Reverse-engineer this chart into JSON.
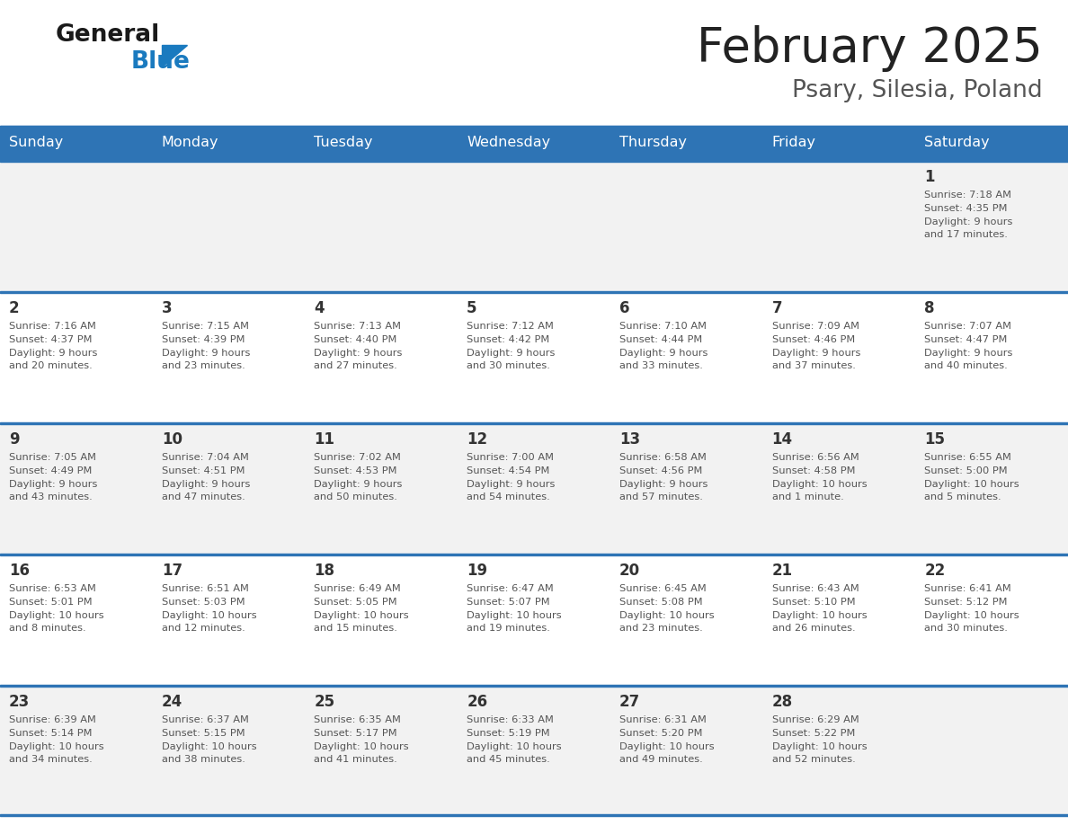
{
  "title": "February 2025",
  "subtitle": "Psary, Silesia, Poland",
  "header_bg": "#2E74B5",
  "header_text_color": "#FFFFFF",
  "cell_bg_odd": "#F2F2F2",
  "cell_bg_even": "#FFFFFF",
  "day_names": [
    "Sunday",
    "Monday",
    "Tuesday",
    "Wednesday",
    "Thursday",
    "Friday",
    "Saturday"
  ],
  "title_color": "#222222",
  "subtitle_color": "#555555",
  "divider_color": "#2E74B5",
  "day_number_color": "#333333",
  "cell_text_color": "#555555",
  "calendar": [
    [
      {
        "day": null,
        "info": null
      },
      {
        "day": null,
        "info": null
      },
      {
        "day": null,
        "info": null
      },
      {
        "day": null,
        "info": null
      },
      {
        "day": null,
        "info": null
      },
      {
        "day": null,
        "info": null
      },
      {
        "day": 1,
        "info": "Sunrise: 7:18 AM\nSunset: 4:35 PM\nDaylight: 9 hours\nand 17 minutes."
      }
    ],
    [
      {
        "day": 2,
        "info": "Sunrise: 7:16 AM\nSunset: 4:37 PM\nDaylight: 9 hours\nand 20 minutes."
      },
      {
        "day": 3,
        "info": "Sunrise: 7:15 AM\nSunset: 4:39 PM\nDaylight: 9 hours\nand 23 minutes."
      },
      {
        "day": 4,
        "info": "Sunrise: 7:13 AM\nSunset: 4:40 PM\nDaylight: 9 hours\nand 27 minutes."
      },
      {
        "day": 5,
        "info": "Sunrise: 7:12 AM\nSunset: 4:42 PM\nDaylight: 9 hours\nand 30 minutes."
      },
      {
        "day": 6,
        "info": "Sunrise: 7:10 AM\nSunset: 4:44 PM\nDaylight: 9 hours\nand 33 minutes."
      },
      {
        "day": 7,
        "info": "Sunrise: 7:09 AM\nSunset: 4:46 PM\nDaylight: 9 hours\nand 37 minutes."
      },
      {
        "day": 8,
        "info": "Sunrise: 7:07 AM\nSunset: 4:47 PM\nDaylight: 9 hours\nand 40 minutes."
      }
    ],
    [
      {
        "day": 9,
        "info": "Sunrise: 7:05 AM\nSunset: 4:49 PM\nDaylight: 9 hours\nand 43 minutes."
      },
      {
        "day": 10,
        "info": "Sunrise: 7:04 AM\nSunset: 4:51 PM\nDaylight: 9 hours\nand 47 minutes."
      },
      {
        "day": 11,
        "info": "Sunrise: 7:02 AM\nSunset: 4:53 PM\nDaylight: 9 hours\nand 50 minutes."
      },
      {
        "day": 12,
        "info": "Sunrise: 7:00 AM\nSunset: 4:54 PM\nDaylight: 9 hours\nand 54 minutes."
      },
      {
        "day": 13,
        "info": "Sunrise: 6:58 AM\nSunset: 4:56 PM\nDaylight: 9 hours\nand 57 minutes."
      },
      {
        "day": 14,
        "info": "Sunrise: 6:56 AM\nSunset: 4:58 PM\nDaylight: 10 hours\nand 1 minute."
      },
      {
        "day": 15,
        "info": "Sunrise: 6:55 AM\nSunset: 5:00 PM\nDaylight: 10 hours\nand 5 minutes."
      }
    ],
    [
      {
        "day": 16,
        "info": "Sunrise: 6:53 AM\nSunset: 5:01 PM\nDaylight: 10 hours\nand 8 minutes."
      },
      {
        "day": 17,
        "info": "Sunrise: 6:51 AM\nSunset: 5:03 PM\nDaylight: 10 hours\nand 12 minutes."
      },
      {
        "day": 18,
        "info": "Sunrise: 6:49 AM\nSunset: 5:05 PM\nDaylight: 10 hours\nand 15 minutes."
      },
      {
        "day": 19,
        "info": "Sunrise: 6:47 AM\nSunset: 5:07 PM\nDaylight: 10 hours\nand 19 minutes."
      },
      {
        "day": 20,
        "info": "Sunrise: 6:45 AM\nSunset: 5:08 PM\nDaylight: 10 hours\nand 23 minutes."
      },
      {
        "day": 21,
        "info": "Sunrise: 6:43 AM\nSunset: 5:10 PM\nDaylight: 10 hours\nand 26 minutes."
      },
      {
        "day": 22,
        "info": "Sunrise: 6:41 AM\nSunset: 5:12 PM\nDaylight: 10 hours\nand 30 minutes."
      }
    ],
    [
      {
        "day": 23,
        "info": "Sunrise: 6:39 AM\nSunset: 5:14 PM\nDaylight: 10 hours\nand 34 minutes."
      },
      {
        "day": 24,
        "info": "Sunrise: 6:37 AM\nSunset: 5:15 PM\nDaylight: 10 hours\nand 38 minutes."
      },
      {
        "day": 25,
        "info": "Sunrise: 6:35 AM\nSunset: 5:17 PM\nDaylight: 10 hours\nand 41 minutes."
      },
      {
        "day": 26,
        "info": "Sunrise: 6:33 AM\nSunset: 5:19 PM\nDaylight: 10 hours\nand 45 minutes."
      },
      {
        "day": 27,
        "info": "Sunrise: 6:31 AM\nSunset: 5:20 PM\nDaylight: 10 hours\nand 49 minutes."
      },
      {
        "day": 28,
        "info": "Sunrise: 6:29 AM\nSunset: 5:22 PM\nDaylight: 10 hours\nand 52 minutes."
      },
      {
        "day": null,
        "info": null
      }
    ]
  ],
  "logo_general_color": "#1a1a1a",
  "logo_blue_color": "#1a7abf",
  "n_cols": 7,
  "n_weeks": 5,
  "fig_width": 11.88,
  "fig_height": 9.18,
  "dpi": 100
}
